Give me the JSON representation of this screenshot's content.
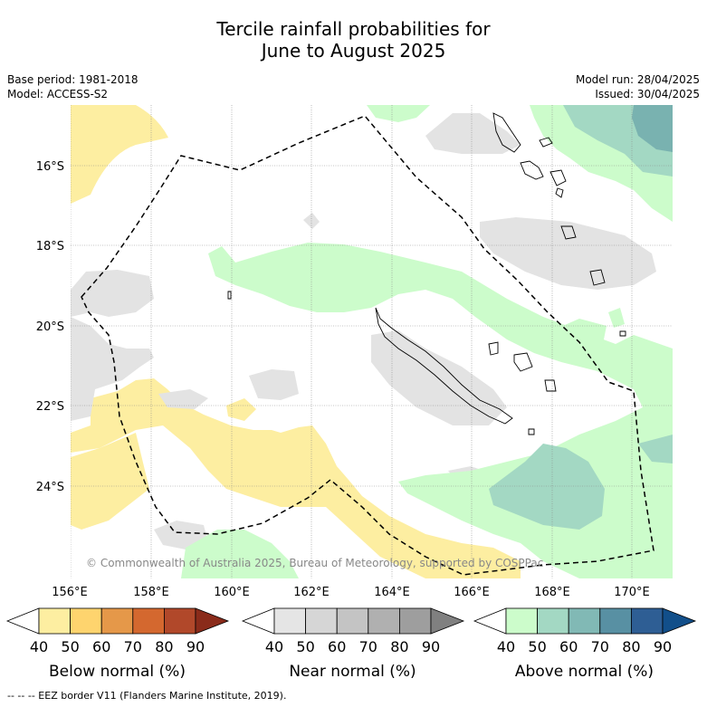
{
  "title_line1": "Tercile rainfall probabilities for",
  "title_line2": "June to August 2025",
  "meta": {
    "base_period": "Base period: 1981-2018",
    "model": "Model: ACCESS-S2",
    "model_run": "Model run: 28/04/2025",
    "issued": "Issued: 30/04/2025"
  },
  "map": {
    "lon_ticks": [
      "156°E",
      "158°E",
      "160°E",
      "162°E",
      "164°E",
      "166°E",
      "168°E",
      "170°E"
    ],
    "lat_ticks": [
      "16°S",
      "18°S",
      "20°S",
      "22°S",
      "24°S"
    ],
    "copyright": "© Commonwealth of Australia 2025, Bureau of Meteorology, supported by COSPPac",
    "colors": {
      "below_50": "#fdeea1",
      "near_50": "#e3e3e3",
      "above_50": "#ccfccb",
      "above_60": "#a3d8c3",
      "above_70": "#79b2b0"
    }
  },
  "colorbars": [
    {
      "title": "Below normal (%)",
      "ticks": [
        "40",
        "50",
        "60",
        "70",
        "80",
        "90"
      ],
      "colors": [
        "#fdeea1",
        "#fed46e",
        "#e59849",
        "#d4682f",
        "#b1482a",
        "#8a2b1a"
      ]
    },
    {
      "title": "Near normal (%)",
      "ticks": [
        "40",
        "50",
        "60",
        "70",
        "80",
        "90"
      ],
      "colors": [
        "#e5e5e5",
        "#d6d6d6",
        "#c4c4c4",
        "#b0b0b0",
        "#9e9e9e",
        "#808080"
      ]
    },
    {
      "title": "Above normal (%)",
      "ticks": [
        "40",
        "50",
        "60",
        "70",
        "80",
        "90"
      ],
      "colors": [
        "#ccfccb",
        "#a3d8c3",
        "#81b9b5",
        "#5890a3",
        "#2e5e94",
        "#124f8a"
      ]
    }
  ],
  "footer": "-- -- -- EEZ border V11 (Flanders Marine Institute, 2019)."
}
